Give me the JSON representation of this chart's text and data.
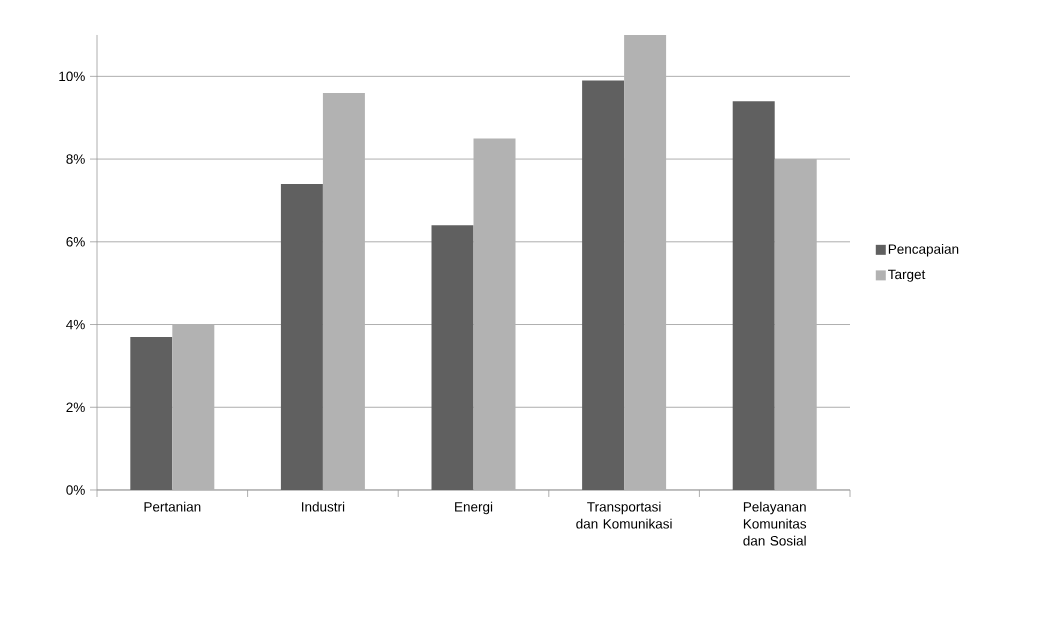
{
  "chart_data": {
    "type": "bar",
    "categories": [
      "Pertanian",
      "Industri",
      "Energi",
      "Transportasi dan Komunikasi",
      "Pelayanan Komunitas dan Sosial"
    ],
    "series": [
      {
        "name": "Pencapaian",
        "color": "#606060",
        "values": [
          3.7,
          7.4,
          6.4,
          9.9,
          9.4
        ]
      },
      {
        "name": "Target",
        "color": "#b2b2b2",
        "values": [
          4.0,
          9.6,
          8.5,
          11.0,
          8.0
        ]
      }
    ],
    "ylim": [
      0,
      11
    ],
    "yticks": [
      {
        "value": 0,
        "label": "0%"
      },
      {
        "value": 2,
        "label": "2%"
      },
      {
        "value": 4,
        "label": "4%"
      },
      {
        "value": 6,
        "label": "6%"
      },
      {
        "value": 8,
        "label": "8%"
      },
      {
        "value": 10,
        "label": "10%"
      }
    ],
    "grid": "y",
    "legend": "right"
  }
}
